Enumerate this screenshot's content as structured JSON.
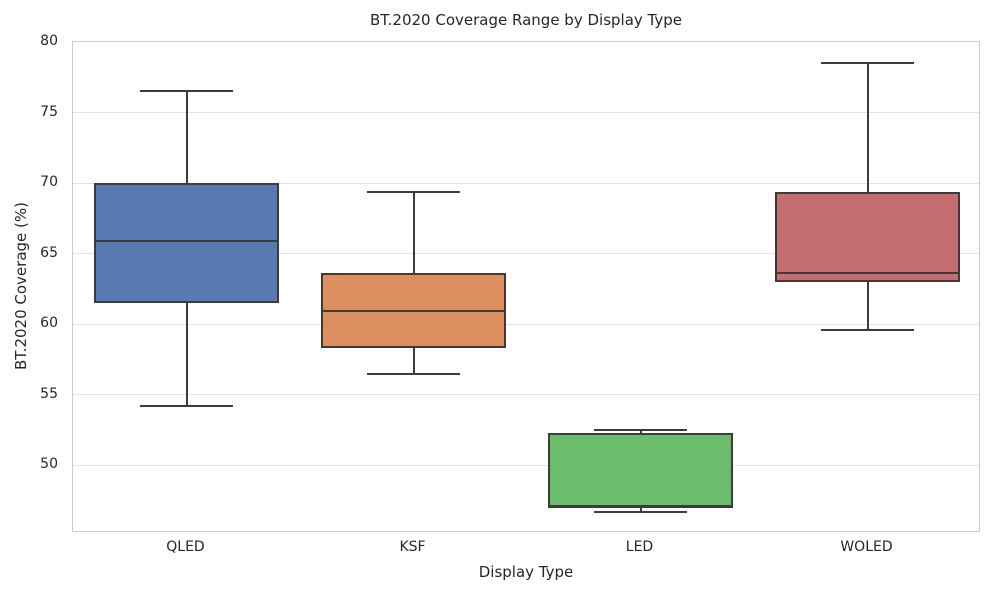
{
  "chart_data": {
    "type": "box",
    "title": "BT.2020 Coverage Range by Display Type",
    "xlabel": "Display Type",
    "ylabel": "BT.2020 Coverage (%)",
    "categories": [
      "QLED",
      "KSF",
      "LED",
      "WOLED"
    ],
    "ylim": [
      45.2,
      80
    ],
    "yticks": [
      50,
      55,
      60,
      65,
      70,
      75,
      80
    ],
    "grid": "horizontal-gridlines-on",
    "legend": "none",
    "boxes": [
      {
        "category": "QLED",
        "whisker_low": 54.2,
        "q1": 61.5,
        "median": 65.9,
        "q3": 70.0,
        "whisker_high": 76.5,
        "color": "#5879b2"
      },
      {
        "category": "KSF",
        "whisker_low": 56.5,
        "q1": 58.3,
        "median": 60.9,
        "q3": 63.6,
        "whisker_high": 69.4,
        "color": "#dd8e5e"
      },
      {
        "category": "LED",
        "whisker_low": 46.7,
        "q1": 47.0,
        "median": 47.1,
        "q3": 52.3,
        "whisker_high": 52.5,
        "color": "#6abd6a"
      },
      {
        "category": "WOLED",
        "whisker_low": 59.6,
        "q1": 63.0,
        "median": 63.6,
        "q3": 69.4,
        "whisker_high": 78.5,
        "color": "#c56e71"
      }
    ],
    "colors": {
      "box_edge": "#3c3c3c",
      "whisker": "#3c3c3c",
      "median": "#3c3c3c",
      "grid": "#e3e3e3",
      "spine": "#cccccc",
      "text": "#262626",
      "background": "#ffffff"
    }
  }
}
